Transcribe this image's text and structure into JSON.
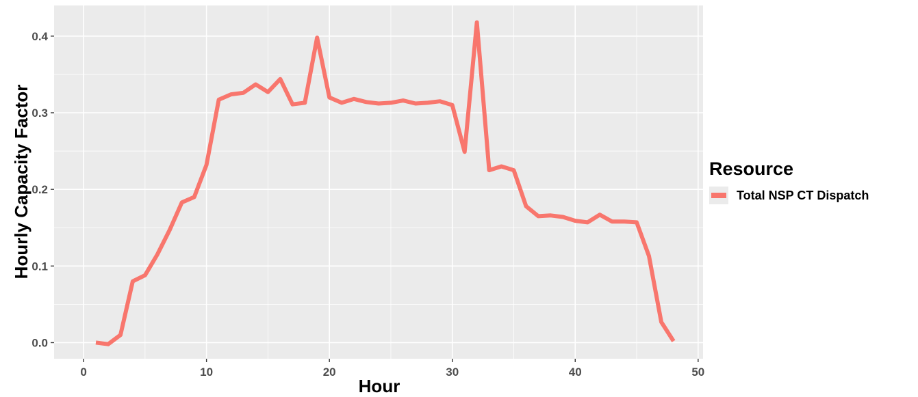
{
  "chart_data": {
    "type": "line",
    "xlabel": "Hour",
    "ylabel": "Hourly Capacity Factor",
    "xlim": [
      -2.4,
      50.4
    ],
    "ylim": [
      -0.021,
      0.44
    ],
    "xticks": [
      0,
      10,
      20,
      30,
      40,
      50
    ],
    "yticks": [
      0.0,
      0.1,
      0.2,
      0.3,
      0.4
    ],
    "xtick_labels": [
      "0",
      "10",
      "20",
      "30",
      "40",
      "50"
    ],
    "ytick_labels": [
      "0.0",
      "0.1",
      "0.2",
      "0.3",
      "0.4"
    ],
    "grid": true,
    "legend": {
      "title": "Resource",
      "position": "right"
    },
    "series": [
      {
        "name": "Total NSP CT Dispatch",
        "color": "#f8766d",
        "x": [
          1,
          2,
          3,
          4,
          5,
          6,
          7,
          8,
          9,
          10,
          11,
          12,
          13,
          14,
          15,
          16,
          17,
          18,
          19,
          20,
          21,
          22,
          23,
          24,
          25,
          26,
          27,
          28,
          29,
          30,
          31,
          32,
          33,
          34,
          35,
          36,
          37,
          38,
          39,
          40,
          41,
          42,
          43,
          44,
          45,
          46,
          47,
          48
        ],
        "y": [
          0.0,
          -0.002,
          0.01,
          0.08,
          0.088,
          0.115,
          0.147,
          0.183,
          0.19,
          0.232,
          0.317,
          0.324,
          0.326,
          0.337,
          0.327,
          0.344,
          0.311,
          0.313,
          0.398,
          0.32,
          0.313,
          0.318,
          0.314,
          0.312,
          0.313,
          0.316,
          0.312,
          0.313,
          0.315,
          0.31,
          0.249,
          0.418,
          0.225,
          0.23,
          0.225,
          0.178,
          0.165,
          0.166,
          0.164,
          0.159,
          0.157,
          0.167,
          0.158,
          0.158,
          0.157,
          0.113,
          0.027,
          0.002
        ]
      }
    ]
  }
}
